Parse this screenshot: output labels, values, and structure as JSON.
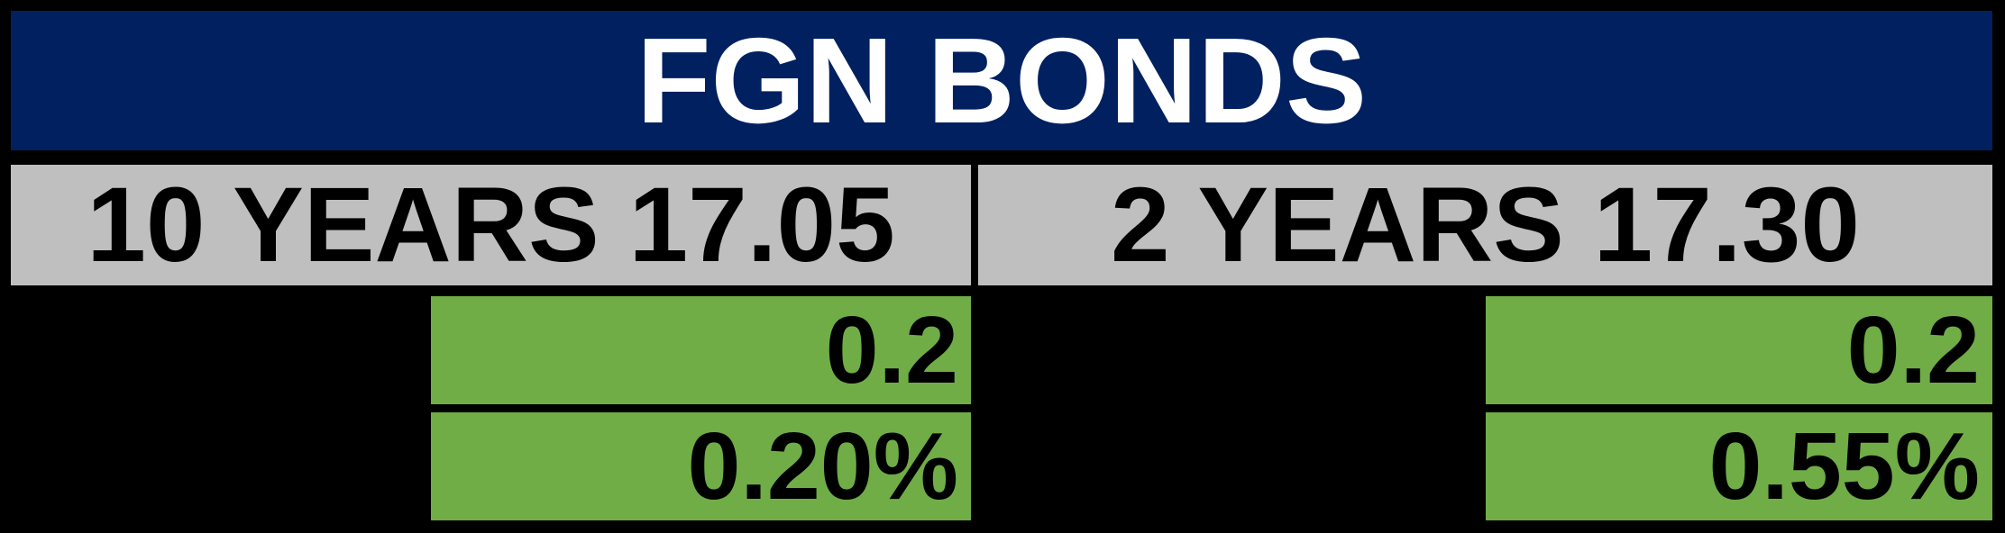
{
  "title": "FGN BONDS",
  "columns": [
    {
      "header": "10 YEARS 17.05",
      "change": "0.2",
      "change_percent": "0.20%"
    },
    {
      "header": "2 YEARS 17.30",
      "change": "0.2",
      "change_percent": "0.55%"
    }
  ],
  "colors": {
    "navy": "#002060",
    "gray": "#BFBFBF",
    "green": "#70AD47",
    "background": "#000000",
    "header_text": "#FFFFFF",
    "cell_text": "#000000"
  },
  "chart_data": {
    "type": "table",
    "title": "FGN BONDS",
    "rows": [
      {
        "tenor": "10 YEARS",
        "yield": 17.05,
        "change": 0.2,
        "change_percent": 0.2
      },
      {
        "tenor": "2 YEARS",
        "yield": 17.3,
        "change": 0.2,
        "change_percent": 0.55
      }
    ],
    "notes": "change_percent values are shown with a % suffix; change and change_percent cells are highlighted green"
  }
}
